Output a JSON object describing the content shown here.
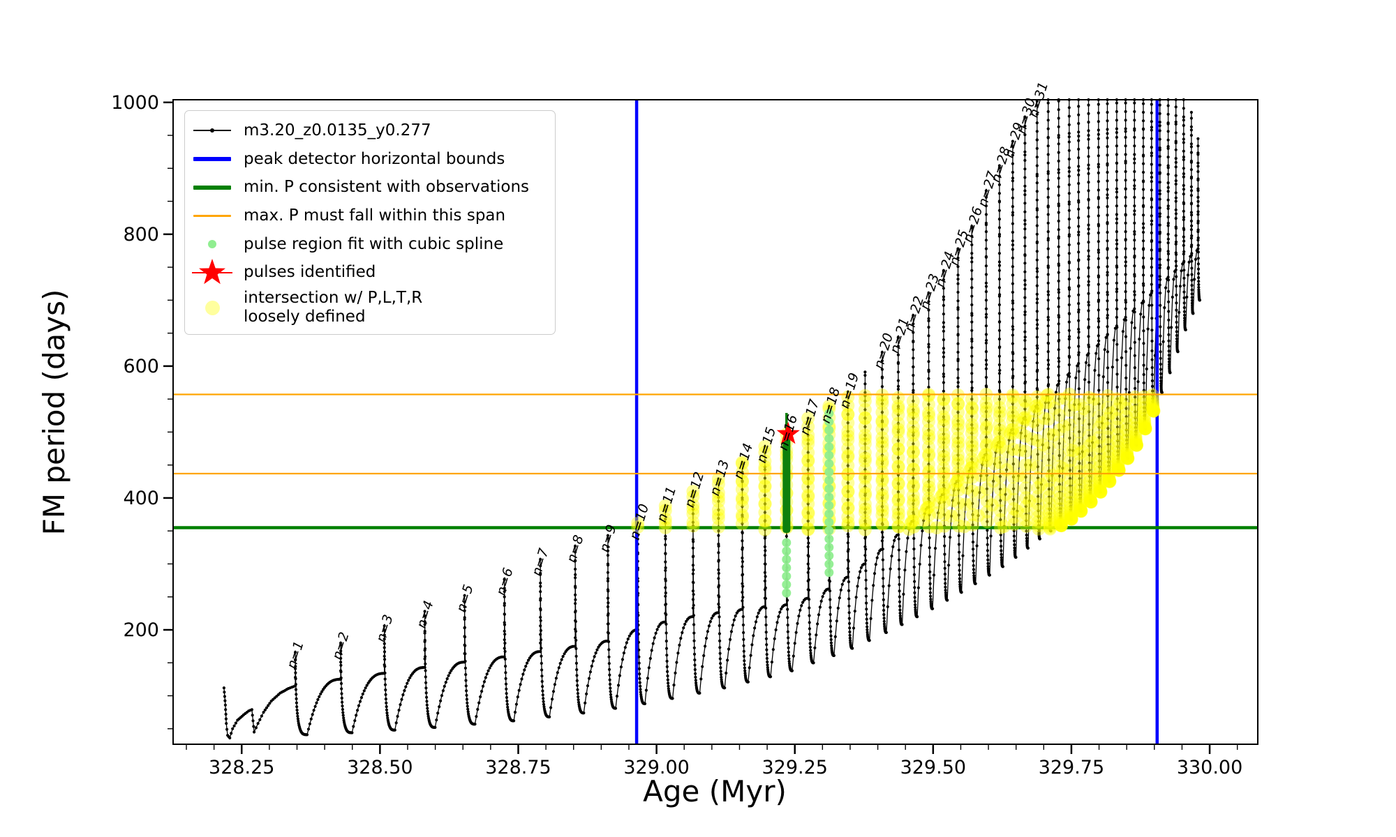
{
  "chart_data": {
    "type": "line",
    "title": "",
    "xlabel": "Age (Myr)",
    "ylabel": "FM period (days)",
    "xlim": [
      328.126,
      330.087
    ],
    "ylim": [
      26.5,
      1004
    ],
    "x_ticks": [
      {
        "value": 328.25,
        "label": "328.25"
      },
      {
        "value": 328.5,
        "label": "328.50"
      },
      {
        "value": 328.75,
        "label": "328.75"
      },
      {
        "value": 329.0,
        "label": "329.00"
      },
      {
        "value": 329.25,
        "label": "329.25"
      },
      {
        "value": 329.5,
        "label": "329.50"
      },
      {
        "value": 329.75,
        "label": "329.75"
      },
      {
        "value": 330.0,
        "label": "330.00"
      }
    ],
    "x_minor_step": 0.05,
    "y_ticks": [
      {
        "value": 200,
        "label": "200"
      },
      {
        "value": 400,
        "label": "400"
      },
      {
        "value": 600,
        "label": "600"
      },
      {
        "value": 800,
        "label": "800"
      },
      {
        "value": 1000,
        "label": "1000"
      }
    ],
    "y_minor_step": 50,
    "series_name": "m3.20_z0.0135_y0.277",
    "peak_detector_bounds_age": [
      328.964,
      329.905
    ],
    "min_P_line": 355,
    "max_P_span_lines": [
      437,
      557
    ],
    "intersection_band": {
      "age_range": [
        328.96,
        329.918
      ],
      "period_range": [
        352,
        559
      ]
    },
    "pulses_identified": [
      {
        "age": 329.238,
        "period": 497
      }
    ],
    "spline_fit_bar": {
      "age": 329.235,
      "from": 347,
      "to": 490,
      "tip_to": 529
    },
    "spline_fit_columns": [
      {
        "age": 329.235,
        "from": 256,
        "to": 344
      },
      {
        "age": 329.312,
        "from": 287,
        "to": 537
      }
    ],
    "pre_pulse_points": [
      [
        328.218,
        112
      ],
      [
        328.2205,
        86
      ],
      [
        328.2222,
        58
      ],
      [
        328.2245,
        40
      ],
      [
        328.2285,
        36
      ],
      [
        328.2335,
        50
      ],
      [
        328.2425,
        63
      ],
      [
        328.2535,
        71
      ],
      [
        328.2625,
        77
      ],
      [
        328.2685,
        79
      ],
      [
        328.2705,
        62
      ],
      [
        328.2725,
        45
      ],
      [
        328.2795,
        58
      ],
      [
        328.2895,
        75
      ],
      [
        328.3035,
        92
      ],
      [
        328.3195,
        104
      ],
      [
        328.3345,
        111
      ],
      [
        328.347,
        115
      ]
    ],
    "pulses": [
      {
        "label": "n=1",
        "age": 328.347,
        "peak": 166,
        "shoulder": 115,
        "trough_after": 41
      },
      {
        "label": "n=2",
        "age": 328.429,
        "peak": 180,
        "shoulder": 125,
        "trough_after": 44
      },
      {
        "label": "n=3",
        "age": 328.508,
        "peak": 206,
        "shoulder": 134,
        "trough_after": 48
      },
      {
        "label": "n=4",
        "age": 328.581,
        "peak": 228,
        "shoulder": 143,
        "trough_after": 52
      },
      {
        "label": "n=5",
        "age": 328.653,
        "peak": 252,
        "shoulder": 151,
        "trough_after": 57
      },
      {
        "label": "n=6",
        "age": 328.725,
        "peak": 277,
        "shoulder": 159,
        "trough_after": 62
      },
      {
        "label": "n=7",
        "age": 328.79,
        "peak": 307,
        "shoulder": 167,
        "trough_after": 68
      },
      {
        "label": "n=8",
        "age": 328.853,
        "peak": 327,
        "shoulder": 175,
        "trough_after": 74
      },
      {
        "label": "n=9",
        "age": 328.912,
        "peak": 343,
        "shoulder": 183,
        "trough_after": 81
      },
      {
        "label": "n=10",
        "age": 328.966,
        "peak": 362,
        "shoulder": 200,
        "trough_after": 88
      },
      {
        "label": "n=11",
        "age": 329.016,
        "peak": 388,
        "shoulder": 212,
        "trough_after": 96
      },
      {
        "label": "n=12",
        "age": 329.066,
        "peak": 410,
        "shoulder": 220,
        "trough_after": 104
      },
      {
        "label": "n=13",
        "age": 329.112,
        "peak": 429,
        "shoulder": 226,
        "trough_after": 112
      },
      {
        "label": "n=14",
        "age": 329.155,
        "peak": 454,
        "shoulder": 231,
        "trough_after": 121
      },
      {
        "label": "n=15",
        "age": 329.196,
        "peak": 478,
        "shoulder": 235,
        "trough_after": 129
      },
      {
        "label": "n=16",
        "age": 329.235,
        "peak": 497,
        "shoulder": 238,
        "trough_after": 138
      },
      {
        "label": "n=17",
        "age": 329.274,
        "peak": 521,
        "shoulder": 248,
        "trough_after": 150
      },
      {
        "label": "n=18",
        "age": 329.312,
        "peak": 539,
        "shoulder": 262,
        "trough_after": 161
      },
      {
        "label": "n=19",
        "age": 329.346,
        "peak": 561,
        "shoulder": 280,
        "trough_after": 172
      },
      {
        "label": null,
        "age": 329.377,
        "peak": 591,
        "shoulder": 300,
        "trough_after": 184
      },
      {
        "label": "n=20",
        "age": 329.408,
        "peak": 621,
        "shoulder": 322,
        "trough_after": 196
      },
      {
        "label": "n=21",
        "age": 329.437,
        "peak": 644,
        "shoulder": 344,
        "trough_after": 208
      },
      {
        "label": "n=22",
        "age": 329.464,
        "peak": 677,
        "shoulder": 365,
        "trough_after": 220
      },
      {
        "label": "n=23",
        "age": 329.492,
        "peak": 711,
        "shoulder": 386,
        "trough_after": 232
      },
      {
        "label": "n=24",
        "age": 329.519,
        "peak": 745,
        "shoulder": 406,
        "trough_after": 245
      },
      {
        "label": "n=25",
        "age": 329.545,
        "peak": 778,
        "shoulder": 426,
        "trough_after": 257
      },
      {
        "label": "n=26",
        "age": 329.57,
        "peak": 812,
        "shoulder": 446,
        "trough_after": 270
      },
      {
        "label": "n=27",
        "age": 329.596,
        "peak": 866,
        "shoulder": 466,
        "trough_after": 283
      },
      {
        "label": "n=28",
        "age": 329.62,
        "peak": 904,
        "shoulder": 485,
        "trough_after": 296
      },
      {
        "label": "n=29",
        "age": 329.644,
        "peak": 941,
        "shoulder": 504,
        "trough_after": 310
      },
      {
        "label": "n=30",
        "age": 329.666,
        "peak": 978,
        "shoulder": 522,
        "trough_after": 324
      },
      {
        "label": "n=31",
        "age": 329.688,
        "peak": 1002,
        "shoulder": 540,
        "trough_after": 338
      },
      {
        "label": null,
        "age": 329.708,
        "peak": 1020,
        "shoulder": 557,
        "trough_after": 350
      },
      {
        "label": null,
        "age": 329.727,
        "peak": 1020,
        "shoulder": 573,
        "trough_after": 358
      },
      {
        "label": null,
        "age": 329.746,
        "peak": 1020,
        "shoulder": 589,
        "trough_after": 368
      },
      {
        "label": null,
        "age": 329.763,
        "peak": 1020,
        "shoulder": 604,
        "trough_after": 380
      },
      {
        "label": null,
        "age": 329.781,
        "peak": 1020,
        "shoulder": 619,
        "trough_after": 394
      },
      {
        "label": null,
        "age": 329.799,
        "peak": 1020,
        "shoulder": 633,
        "trough_after": 409
      },
      {
        "label": null,
        "age": 329.815,
        "peak": 1020,
        "shoulder": 647,
        "trough_after": 425
      },
      {
        "label": null,
        "age": 329.832,
        "peak": 1020,
        "shoulder": 661,
        "trough_after": 442
      },
      {
        "label": null,
        "age": 329.848,
        "peak": 1020,
        "shoulder": 674,
        "trough_after": 460
      },
      {
        "label": null,
        "age": 329.864,
        "peak": 1020,
        "shoulder": 687,
        "trough_after": 480
      },
      {
        "label": null,
        "age": 329.88,
        "peak": 1020,
        "shoulder": 699,
        "trough_after": 505
      },
      {
        "label": null,
        "age": 329.895,
        "peak": 1020,
        "shoulder": 711,
        "trough_after": 532
      },
      {
        "label": null,
        "age": 329.91,
        "peak": 1020,
        "shoulder": 723,
        "trough_after": 560
      },
      {
        "label": null,
        "age": 329.925,
        "peak": 1020,
        "shoulder": 735,
        "trough_after": 590
      },
      {
        "label": null,
        "age": 329.939,
        "peak": 1020,
        "shoulder": 746,
        "trough_after": 622
      },
      {
        "label": null,
        "age": 329.953,
        "peak": 1004,
        "shoulder": 757,
        "trough_after": 655
      },
      {
        "label": null,
        "age": 329.967,
        "peak": 985,
        "shoulder": 768,
        "trough_after": 680
      },
      {
        "label": null,
        "age": 329.979,
        "peak": 945,
        "shoulder": 778,
        "trough_after": 700
      }
    ],
    "colors": {
      "series": "#000000",
      "peak_bounds": "#0000ff",
      "min_p": "#008000",
      "max_p": "#ffa500",
      "spline_dot": "#90ee90",
      "fit_bar": "#0c800c",
      "pulse_star": "#ff0000",
      "intersection": "#ffff00"
    },
    "legend_position": "upper left",
    "grid": false
  },
  "legend": {
    "items": [
      {
        "label": "m3.20_z0.0135_y0.277",
        "marker": "line-with-dot",
        "color": "#000000"
      },
      {
        "label": "peak detector horizontal bounds",
        "marker": "thick-line",
        "color": "#0000ff"
      },
      {
        "label": "min. P consistent with observations",
        "marker": "thick-line",
        "color": "#008000"
      },
      {
        "label": "max. P must fall within this span",
        "marker": "line",
        "color": "#ffa500"
      },
      {
        "label": "pulse region fit with cubic spline",
        "marker": "small-dot",
        "color": "#90ee90"
      },
      {
        "label": "pulses identified",
        "marker": "star",
        "color": "#ff0000"
      },
      {
        "label": "intersection w/ P,L,T,R\nloosely defined",
        "marker": "large-dot",
        "color": "rgba(255,255,0,0.38)"
      }
    ]
  }
}
